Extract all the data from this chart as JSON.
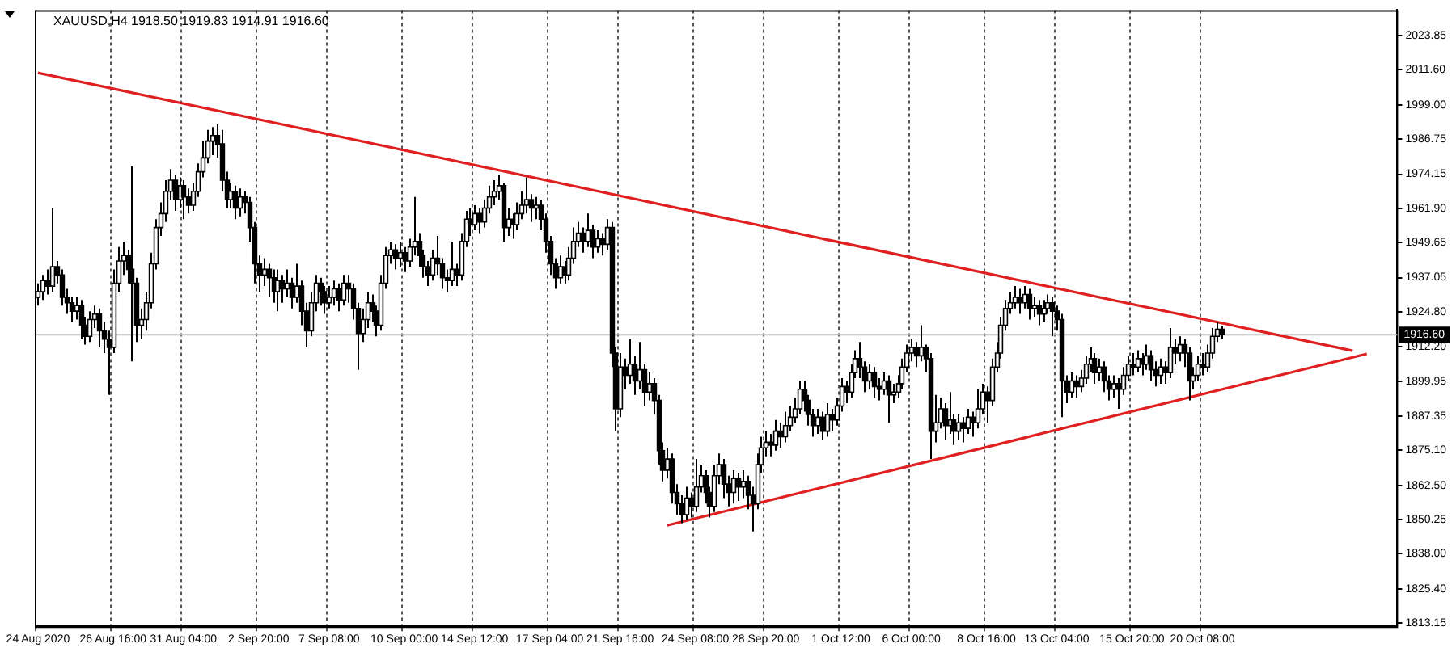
{
  "chart_data": {
    "type": "candlestick",
    "title": "XAUUSD,H4 1918.50 1919.83 1914.91 1916.60",
    "categories": [
      "24 Aug 2020",
      null,
      null,
      null,
      null,
      null,
      null,
      null,
      null,
      null,
      null,
      null,
      null,
      null,
      null,
      null,
      "26 Aug 16:00",
      null,
      null,
      null,
      null,
      null,
      null,
      null,
      null,
      null,
      null,
      null,
      null,
      null,
      null,
      "31 Aug 04:00",
      null,
      null,
      null,
      null,
      null,
      null,
      null,
      null,
      null,
      null,
      null,
      null,
      null,
      null,
      null,
      "2 Sep 20:00",
      null,
      null,
      null,
      null,
      null,
      null,
      null,
      null,
      null,
      null,
      null,
      null,
      null,
      null,
      "7 Sep 08:00",
      null,
      null,
      null,
      null,
      null,
      null,
      null,
      null,
      null,
      null,
      null,
      null,
      null,
      null,
      null,
      "10 Sep 00:00",
      null,
      null,
      null,
      null,
      null,
      null,
      null,
      null,
      null,
      null,
      null,
      null,
      null,
      null,
      "14 Sep 12:00",
      null,
      null,
      null,
      null,
      null,
      null,
      null,
      null,
      null,
      null,
      null,
      null,
      null,
      null,
      null,
      "17 Sep 04:00",
      null,
      null,
      null,
      null,
      null,
      null,
      null,
      null,
      null,
      null,
      null,
      null,
      null,
      null,
      "21 Sep 16:00",
      null,
      null,
      null,
      null,
      null,
      null,
      null,
      null,
      null,
      null,
      null,
      null,
      null,
      null,
      null,
      "24 Sep 08:00",
      null,
      null,
      null,
      null,
      null,
      null,
      null,
      null,
      null,
      null,
      null,
      null,
      null,
      null,
      "28 Sep 20:00",
      null,
      null,
      null,
      null,
      null,
      null,
      null,
      null,
      null,
      null,
      null,
      null,
      null,
      null,
      null,
      "1 Oct 12:00",
      null,
      null,
      null,
      null,
      null,
      null,
      null,
      null,
      null,
      null,
      null,
      null,
      null,
      null,
      "6 Oct 00:00",
      null,
      null,
      null,
      null,
      null,
      null,
      null,
      null,
      null,
      null,
      null,
      null,
      null,
      null,
      null,
      "8 Oct 16:00",
      null,
      null,
      null,
      null,
      null,
      null,
      null,
      null,
      null,
      null,
      null,
      null,
      null,
      null,
      "13 Oct 04:00",
      null,
      null,
      null,
      null,
      null,
      null,
      null,
      null,
      null,
      null,
      null,
      null,
      null,
      null,
      null,
      "15 Oct 20:00",
      null,
      null,
      null,
      null,
      null,
      null,
      null,
      null,
      null,
      null,
      null,
      null,
      null,
      null,
      "20 Oct 08:00",
      null,
      null,
      null,
      null,
      null,
      null,
      null,
      null,
      null,
      null,
      null,
      null,
      null,
      null,
      null,
      null,
      null,
      null,
      null,
      null,
      null,
      null,
      null,
      null,
      null,
      null,
      null,
      null,
      null,
      null,
      null,
      null,
      null,
      null,
      null,
      null,
      null,
      null,
      null,
      null,
      null
    ],
    "ohlc": [
      [
        1930,
        1935,
        1927,
        1932
      ],
      [
        1932,
        1938,
        1929,
        1936
      ],
      [
        1936,
        1940,
        1931,
        1934
      ],
      [
        1934,
        1962,
        1932,
        1941
      ],
      [
        1941,
        1943,
        1935,
        1938
      ],
      [
        1938,
        1940,
        1927,
        1930
      ],
      [
        1930,
        1933,
        1924,
        1928
      ],
      [
        1928,
        1930,
        1921,
        1925
      ],
      [
        1925,
        1930,
        1922,
        1927
      ],
      [
        1927,
        1929,
        1915,
        1920
      ],
      [
        1920,
        1923,
        1913,
        1916
      ],
      [
        1916,
        1925,
        1914,
        1922
      ],
      [
        1922,
        1927,
        1919,
        1924
      ],
      [
        1924,
        1926,
        1912,
        1918
      ],
      [
        1918,
        1921,
        1910,
        1915
      ],
      [
        1915,
        1918,
        1895,
        1912
      ],
      [
        1912,
        1940,
        1910,
        1935
      ],
      [
        1935,
        1948,
        1932,
        1943
      ],
      [
        1943,
        1950,
        1938,
        1945
      ],
      [
        1945,
        1947,
        1935,
        1940
      ],
      [
        1940,
        1977,
        1907,
        1935
      ],
      [
        1935,
        1937,
        1914,
        1920
      ],
      [
        1920,
        1926,
        1915,
        1922
      ],
      [
        1922,
        1932,
        1918,
        1928
      ],
      [
        1928,
        1946,
        1926,
        1942
      ],
      [
        1942,
        1958,
        1940,
        1955
      ],
      [
        1955,
        1964,
        1952,
        1960
      ],
      [
        1960,
        1972,
        1957,
        1968
      ],
      [
        1968,
        1976,
        1965,
        1972
      ],
      [
        1972,
        1974,
        1961,
        1965
      ],
      [
        1965,
        1973,
        1962,
        1970
      ],
      [
        1970,
        1972,
        1958,
        1966
      ],
      [
        1966,
        1969,
        1960,
        1963
      ],
      [
        1963,
        1971,
        1961,
        1968
      ],
      [
        1968,
        1978,
        1966,
        1975
      ],
      [
        1975,
        1986,
        1973,
        1980
      ],
      [
        1980,
        1990,
        1978,
        1986
      ],
      [
        1986,
        1991,
        1981,
        1988
      ],
      [
        1988,
        1992,
        1980,
        1985
      ],
      [
        1985,
        1990,
        1968,
        1972
      ],
      [
        1972,
        1975,
        1962,
        1965
      ],
      [
        1965,
        1971,
        1962,
        1968
      ],
      [
        1968,
        1970,
        1958,
        1962
      ],
      [
        1962,
        1969,
        1959,
        1966
      ],
      [
        1966,
        1968,
        1960,
        1964
      ],
      [
        1964,
        1966,
        1950,
        1955
      ],
      [
        1955,
        1957,
        1935,
        1942
      ],
      [
        1942,
        1945,
        1932,
        1938
      ],
      [
        1938,
        1944,
        1934,
        1940
      ],
      [
        1940,
        1942,
        1930,
        1937
      ],
      [
        1937,
        1940,
        1928,
        1932
      ],
      [
        1932,
        1940,
        1925,
        1936
      ],
      [
        1936,
        1938,
        1928,
        1933
      ],
      [
        1933,
        1940,
        1930,
        1935
      ],
      [
        1935,
        1937,
        1926,
        1930
      ],
      [
        1930,
        1942,
        1928,
        1934
      ],
      [
        1934,
        1936,
        1920,
        1925
      ],
      [
        1925,
        1928,
        1912,
        1918
      ],
      [
        1918,
        1932,
        1916,
        1928
      ],
      [
        1928,
        1938,
        1925,
        1935
      ],
      [
        1935,
        1937,
        1927,
        1932
      ],
      [
        1932,
        1934,
        1924,
        1928
      ],
      [
        1928,
        1934,
        1926,
        1930
      ],
      [
        1930,
        1936,
        1927,
        1933
      ],
      [
        1933,
        1935,
        1925,
        1929
      ],
      [
        1929,
        1938,
        1927,
        1935
      ],
      [
        1935,
        1938,
        1928,
        1933
      ],
      [
        1933,
        1935,
        1922,
        1926
      ],
      [
        1926,
        1928,
        1904,
        1917
      ],
      [
        1917,
        1926,
        1914,
        1922
      ],
      [
        1922,
        1932,
        1919,
        1928
      ],
      [
        1928,
        1931,
        1921,
        1925
      ],
      [
        1925,
        1927,
        1916,
        1920
      ],
      [
        1920,
        1938,
        1918,
        1935
      ],
      [
        1935,
        1948,
        1933,
        1945
      ],
      [
        1945,
        1950,
        1942,
        1947
      ],
      [
        1947,
        1949,
        1940,
        1944
      ],
      [
        1944,
        1950,
        1941,
        1946
      ],
      [
        1946,
        1948,
        1939,
        1943
      ],
      [
        1943,
        1951,
        1941,
        1948
      ],
      [
        1948,
        1966,
        1945,
        1950
      ],
      [
        1950,
        1953,
        1941,
        1945
      ],
      [
        1945,
        1947,
        1937,
        1941
      ],
      [
        1941,
        1943,
        1934,
        1938
      ],
      [
        1938,
        1947,
        1936,
        1944
      ],
      [
        1944,
        1952,
        1938,
        1942
      ],
      [
        1942,
        1944,
        1933,
        1937
      ],
      [
        1937,
        1940,
        1932,
        1936
      ],
      [
        1936,
        1950,
        1934,
        1940
      ],
      [
        1940,
        1942,
        1934,
        1938
      ],
      [
        1938,
        1953,
        1936,
        1950
      ],
      [
        1950,
        1961,
        1948,
        1958
      ],
      [
        1958,
        1962,
        1952,
        1956
      ],
      [
        1956,
        1963,
        1954,
        1960
      ],
      [
        1960,
        1962,
        1953,
        1957
      ],
      [
        1957,
        1965,
        1955,
        1962
      ],
      [
        1962,
        1970,
        1960,
        1966
      ],
      [
        1966,
        1972,
        1963,
        1968
      ],
      [
        1968,
        1974,
        1965,
        1970
      ],
      [
        1970,
        1971,
        1950,
        1955
      ],
      [
        1955,
        1962,
        1952,
        1958
      ],
      [
        1958,
        1960,
        1951,
        1956
      ],
      [
        1956,
        1964,
        1954,
        1960
      ],
      [
        1960,
        1968,
        1958,
        1963
      ],
      [
        1963,
        1973,
        1960,
        1965
      ],
      [
        1965,
        1967,
        1957,
        1962
      ],
      [
        1962,
        1966,
        1958,
        1963
      ],
      [
        1963,
        1965,
        1954,
        1958
      ],
      [
        1958,
        1960,
        1946,
        1950
      ],
      [
        1950,
        1952,
        1938,
        1942
      ],
      [
        1942,
        1944,
        1933,
        1937
      ],
      [
        1937,
        1945,
        1935,
        1941
      ],
      [
        1941,
        1943,
        1935,
        1938
      ],
      [
        1938,
        1948,
        1936,
        1944
      ],
      [
        1944,
        1955,
        1942,
        1950
      ],
      [
        1950,
        1957,
        1948,
        1953
      ],
      [
        1953,
        1955,
        1946,
        1950
      ],
      [
        1950,
        1960,
        1948,
        1954
      ],
      [
        1954,
        1956,
        1944,
        1948
      ],
      [
        1948,
        1954,
        1946,
        1951
      ],
      [
        1951,
        1953,
        1945,
        1949
      ],
      [
        1949,
        1958,
        1947,
        1955
      ],
      [
        1955,
        1957,
        1905,
        1910
      ],
      [
        1910,
        1912,
        1882,
        1890
      ],
      [
        1890,
        1910,
        1887,
        1905
      ],
      [
        1905,
        1908,
        1897,
        1902
      ],
      [
        1902,
        1915,
        1899,
        1906
      ],
      [
        1906,
        1909,
        1895,
        1900
      ],
      [
        1900,
        1914,
        1897,
        1904
      ],
      [
        1904,
        1906,
        1891,
        1896
      ],
      [
        1896,
        1903,
        1893,
        1899
      ],
      [
        1899,
        1901,
        1888,
        1893
      ],
      [
        1893,
        1895,
        1870,
        1875
      ],
      [
        1875,
        1878,
        1864,
        1868
      ],
      [
        1868,
        1876,
        1865,
        1872
      ],
      [
        1872,
        1874,
        1856,
        1860
      ],
      [
        1860,
        1863,
        1852,
        1856
      ],
      [
        1856,
        1859,
        1849,
        1852
      ],
      [
        1852,
        1862,
        1850,
        1858
      ],
      [
        1858,
        1860,
        1851,
        1855
      ],
      [
        1855,
        1872,
        1853,
        1862
      ],
      [
        1862,
        1870,
        1860,
        1866
      ],
      [
        1866,
        1868,
        1856,
        1860
      ],
      [
        1860,
        1862,
        1851,
        1855
      ],
      [
        1855,
        1870,
        1853,
        1866
      ],
      [
        1866,
        1874,
        1863,
        1870
      ],
      [
        1870,
        1872,
        1858,
        1863
      ],
      [
        1863,
        1866,
        1855,
        1860
      ],
      [
        1860,
        1868,
        1856,
        1865
      ],
      [
        1865,
        1867,
        1857,
        1862
      ],
      [
        1862,
        1868,
        1858,
        1864
      ],
      [
        1864,
        1866,
        1854,
        1859
      ],
      [
        1859,
        1862,
        1846,
        1856
      ],
      [
        1856,
        1874,
        1854,
        1870
      ],
      [
        1870,
        1880,
        1867,
        1876
      ],
      [
        1876,
        1882,
        1873,
        1878
      ],
      [
        1878,
        1881,
        1873,
        1877
      ],
      [
        1877,
        1886,
        1875,
        1882
      ],
      [
        1882,
        1885,
        1876,
        1880
      ],
      [
        1880,
        1889,
        1878,
        1884
      ],
      [
        1884,
        1891,
        1882,
        1887
      ],
      [
        1887,
        1894,
        1885,
        1890
      ],
      [
        1890,
        1900,
        1888,
        1897
      ],
      [
        1897,
        1900,
        1889,
        1893
      ],
      [
        1893,
        1895,
        1884,
        1888
      ],
      [
        1888,
        1890,
        1880,
        1884
      ],
      [
        1884,
        1890,
        1881,
        1887
      ],
      [
        1887,
        1889,
        1879,
        1882
      ],
      [
        1882,
        1892,
        1880,
        1888
      ],
      [
        1888,
        1890,
        1882,
        1886
      ],
      [
        1886,
        1894,
        1884,
        1891
      ],
      [
        1891,
        1901,
        1889,
        1898
      ],
      [
        1898,
        1900,
        1892,
        1896
      ],
      [
        1896,
        1906,
        1894,
        1903
      ],
      [
        1903,
        1911,
        1901,
        1908
      ],
      [
        1908,
        1914,
        1901,
        1905
      ],
      [
        1905,
        1907,
        1896,
        1900
      ],
      [
        1900,
        1906,
        1897,
        1903
      ],
      [
        1903,
        1905,
        1894,
        1898
      ],
      [
        1898,
        1901,
        1893,
        1897
      ],
      [
        1897,
        1903,
        1895,
        1900
      ],
      [
        1900,
        1902,
        1885,
        1895
      ],
      [
        1895,
        1899,
        1892,
        1896
      ],
      [
        1896,
        1902,
        1894,
        1899
      ],
      [
        1899,
        1908,
        1897,
        1905
      ],
      [
        1905,
        1913,
        1903,
        1910
      ],
      [
        1910,
        1915,
        1907,
        1912
      ],
      [
        1912,
        1914,
        1905,
        1909
      ],
      [
        1909,
        1920,
        1907,
        1912
      ],
      [
        1912,
        1913,
        1903,
        1908
      ],
      [
        1908,
        1910,
        1872,
        1882
      ],
      [
        1882,
        1895,
        1878,
        1885
      ],
      [
        1885,
        1894,
        1883,
        1890
      ],
      [
        1890,
        1892,
        1879,
        1884
      ],
      [
        1884,
        1896,
        1881,
        1886
      ],
      [
        1886,
        1888,
        1877,
        1882
      ],
      [
        1882,
        1888,
        1879,
        1885
      ],
      [
        1885,
        1887,
        1878,
        1883
      ],
      [
        1883,
        1890,
        1881,
        1887
      ],
      [
        1887,
        1889,
        1880,
        1885
      ],
      [
        1885,
        1897,
        1883,
        1890
      ],
      [
        1890,
        1899,
        1888,
        1896
      ],
      [
        1896,
        1898,
        1885,
        1893
      ],
      [
        1893,
        1908,
        1891,
        1905
      ],
      [
        1905,
        1914,
        1903,
        1910
      ],
      [
        1910,
        1923,
        1908,
        1920
      ],
      [
        1920,
        1929,
        1918,
        1926
      ],
      [
        1926,
        1932,
        1924,
        1928
      ],
      [
        1928,
        1934,
        1926,
        1930
      ],
      [
        1930,
        1933,
        1924,
        1928
      ],
      [
        1928,
        1934,
        1926,
        1931
      ],
      [
        1931,
        1933,
        1922,
        1926
      ],
      [
        1926,
        1930,
        1923,
        1927
      ],
      [
        1927,
        1929,
        1920,
        1924
      ],
      [
        1924,
        1929,
        1921,
        1926
      ],
      [
        1926,
        1931,
        1924,
        1928
      ],
      [
        1928,
        1930,
        1916,
        1925
      ],
      [
        1925,
        1927,
        1918,
        1922
      ],
      [
        1922,
        1924,
        1887,
        1900
      ],
      [
        1900,
        1902,
        1892,
        1896
      ],
      [
        1896,
        1903,
        1894,
        1900
      ],
      [
        1900,
        1902,
        1894,
        1898
      ],
      [
        1898,
        1904,
        1896,
        1901
      ],
      [
        1901,
        1909,
        1899,
        1906
      ],
      [
        1906,
        1912,
        1903,
        1908
      ],
      [
        1908,
        1910,
        1899,
        1903
      ],
      [
        1903,
        1908,
        1900,
        1905
      ],
      [
        1905,
        1907,
        1896,
        1900
      ],
      [
        1900,
        1902,
        1893,
        1897
      ],
      [
        1897,
        1902,
        1894,
        1899
      ],
      [
        1899,
        1901,
        1890,
        1897
      ],
      [
        1897,
        1905,
        1895,
        1902
      ],
      [
        1902,
        1909,
        1900,
        1906
      ],
      [
        1906,
        1910,
        1902,
        1905
      ],
      [
        1905,
        1911,
        1903,
        1908
      ],
      [
        1908,
        1910,
        1902,
        1906
      ],
      [
        1906,
        1913,
        1904,
        1909
      ],
      [
        1909,
        1911,
        1900,
        1904
      ],
      [
        1904,
        1907,
        1898,
        1902
      ],
      [
        1902,
        1908,
        1899,
        1905
      ],
      [
        1905,
        1907,
        1899,
        1903
      ],
      [
        1903,
        1919,
        1901,
        1912
      ],
      [
        1912,
        1915,
        1906,
        1910
      ],
      [
        1910,
        1916,
        1907,
        1913
      ],
      [
        1913,
        1915,
        1905,
        1910
      ],
      [
        1910,
        1912,
        1893,
        1900
      ],
      [
        1900,
        1905,
        1897,
        1902
      ],
      [
        1902,
        1909,
        1900,
        1906
      ],
      [
        1906,
        1910,
        1902,
        1905
      ],
      [
        1905,
        1913,
        1903,
        1910
      ],
      [
        1910,
        1919,
        1908,
        1916
      ],
      [
        1916,
        1921,
        1914,
        1918.5
      ],
      [
        1918.5,
        1919.83,
        1914.91,
        1916.6
      ],
      null,
      null,
      null,
      null,
      null,
      null,
      null,
      null,
      null,
      null,
      null,
      null,
      null,
      null,
      null,
      null,
      null,
      null,
      null,
      null,
      null,
      null,
      null,
      null,
      null,
      null,
      null,
      null,
      null,
      null,
      null,
      null,
      null,
      null,
      null,
      null,
      null
    ],
    "series": [
      {
        "type": "line",
        "color": "#e02020",
        "values": [
          2010.5,
          null,
          null,
          null,
          null,
          null,
          null,
          null,
          null,
          null,
          null,
          null,
          null,
          null,
          null,
          null,
          null,
          null,
          null,
          null,
          null,
          null,
          null,
          null,
          null,
          null,
          null,
          null,
          null,
          null,
          null,
          null,
          null,
          null,
          null,
          null,
          null,
          null,
          null,
          null,
          null,
          null,
          null,
          null,
          null,
          null,
          null,
          null,
          null,
          null,
          null,
          null,
          null,
          null,
          null,
          null,
          null,
          null,
          null,
          null,
          null,
          null,
          null,
          null,
          null,
          null,
          null,
          null,
          null,
          null,
          null,
          null,
          null,
          null,
          null,
          null,
          null,
          null,
          null,
          null,
          null,
          null,
          null,
          null,
          null,
          null,
          null,
          null,
          null,
          null,
          null,
          null,
          null,
          null,
          null,
          null,
          null,
          null,
          null,
          null,
          null,
          null,
          null,
          null,
          null,
          null,
          null,
          null,
          null,
          null,
          null,
          null,
          null,
          null,
          null,
          null,
          null,
          null,
          null,
          null,
          null,
          null,
          null,
          null,
          null,
          null,
          null,
          null,
          null,
          null,
          null,
          null,
          null,
          null,
          null,
          null,
          null,
          null,
          null,
          null,
          null,
          null,
          null,
          null,
          null,
          null,
          null,
          null,
          null,
          null,
          null,
          null,
          null,
          null,
          null,
          null,
          null,
          null,
          null,
          null,
          null,
          null,
          null,
          null,
          null,
          null,
          null,
          null,
          null,
          null,
          null,
          null,
          null,
          null,
          null,
          null,
          null,
          null,
          null,
          null,
          null,
          null,
          null,
          null,
          null,
          null,
          null,
          null,
          null,
          null,
          null,
          null,
          null,
          null,
          null,
          null,
          null,
          null,
          null,
          null,
          null,
          null,
          null,
          null,
          null,
          null,
          null,
          null,
          null,
          null,
          null,
          null,
          null,
          null,
          null,
          null,
          null,
          null,
          null,
          null,
          null,
          null,
          null,
          null,
          null,
          null,
          null,
          null,
          null,
          null,
          null,
          null,
          null,
          null,
          null,
          null,
          null,
          null,
          null,
          null,
          null,
          null,
          null,
          null,
          null,
          null,
          null,
          null,
          null,
          null,
          null,
          null,
          null,
          null,
          null,
          null,
          null,
          null,
          null,
          null,
          null,
          null,
          null,
          null,
          null,
          null,
          null,
          null,
          null,
          null,
          null,
          null,
          null,
          null,
          null,
          null,
          null,
          null,
          null,
          null,
          1910.8,
          null,
          null,
          null,
          null,
          null,
          null,
          null,
          null,
          null
        ]
      },
      {
        "type": "line",
        "color": "#e02020",
        "values": [
          null,
          null,
          null,
          null,
          null,
          null,
          null,
          null,
          null,
          null,
          null,
          null,
          null,
          null,
          null,
          null,
          null,
          null,
          null,
          null,
          null,
          null,
          null,
          null,
          null,
          null,
          null,
          null,
          null,
          null,
          null,
          null,
          null,
          null,
          null,
          null,
          null,
          null,
          null,
          null,
          null,
          null,
          null,
          null,
          null,
          null,
          null,
          null,
          null,
          null,
          null,
          null,
          null,
          null,
          null,
          null,
          null,
          null,
          null,
          null,
          null,
          null,
          null,
          null,
          null,
          null,
          null,
          null,
          null,
          null,
          null,
          null,
          null,
          null,
          null,
          null,
          null,
          null,
          null,
          null,
          null,
          null,
          null,
          null,
          null,
          null,
          null,
          null,
          null,
          null,
          null,
          null,
          null,
          null,
          null,
          null,
          null,
          null,
          null,
          null,
          null,
          null,
          null,
          null,
          null,
          null,
          null,
          null,
          null,
          null,
          null,
          null,
          null,
          null,
          null,
          null,
          null,
          null,
          null,
          null,
          null,
          null,
          null,
          null,
          null,
          null,
          null,
          null,
          null,
          null,
          null,
          null,
          null,
          null,
          1848.2,
          null,
          null,
          null,
          null,
          null,
          null,
          null,
          null,
          null,
          null,
          null,
          null,
          null,
          null,
          null,
          null,
          null,
          null,
          null,
          null,
          null,
          null,
          null,
          null,
          null,
          null,
          null,
          null,
          null,
          null,
          null,
          null,
          null,
          null,
          null,
          null,
          null,
          null,
          null,
          null,
          null,
          null,
          null,
          null,
          null,
          null,
          null,
          null,
          null,
          null,
          null,
          null,
          null,
          null,
          null,
          null,
          null,
          null,
          null,
          null,
          null,
          null,
          null,
          null,
          null,
          null,
          null,
          null,
          null,
          null,
          null,
          null,
          null,
          null,
          null,
          null,
          null,
          null,
          null,
          null,
          null,
          null,
          null,
          null,
          null,
          null,
          null,
          null,
          null,
          null,
          null,
          null,
          null,
          null,
          null,
          null,
          null,
          null,
          null,
          null,
          null,
          null,
          null,
          null,
          null,
          null,
          null,
          null,
          null,
          null,
          null,
          null,
          null,
          null,
          null,
          null,
          null,
          null,
          null,
          null,
          null,
          null,
          null,
          null,
          null,
          null,
          null,
          null,
          null,
          null,
          null,
          null,
          null,
          null,
          null,
          null,
          null,
          null,
          null,
          null,
          null,
          null,
          null,
          null,
          null,
          null,
          null,
          null,
          1909.7,
          null,
          null,
          null,
          null,
          null,
          null
        ]
      }
    ],
    "ylim": [
      1812,
      2033
    ],
    "yticks": [
      {
        "value": 1813.15,
        "label": "1813.15"
      },
      {
        "value": 1825.4,
        "label": "1825.40"
      },
      {
        "value": 1838,
        "label": "1838.00"
      },
      {
        "value": 1850.25,
        "label": "1850.25"
      },
      {
        "value": 1862.5,
        "label": "1862.50"
      },
      {
        "value": 1875.1,
        "label": "1875.10"
      },
      {
        "value": 1887.35,
        "label": "1887.35"
      },
      {
        "value": 1899.95,
        "label": "1899.95"
      },
      {
        "value": 1912.2,
        "label": "1912.20"
      },
      {
        "value": 1924.8,
        "label": "1924.80"
      },
      {
        "value": 1937.05,
        "label": "1937.05"
      },
      {
        "value": 1949.65,
        "label": "1949.65"
      },
      {
        "value": 1961.9,
        "label": "1961.90"
      },
      {
        "value": 1974.15,
        "label": "1974.15"
      },
      {
        "value": 1986.75,
        "label": "1986.75"
      },
      {
        "value": 1999,
        "label": "1999.00"
      },
      {
        "value": 2011.6,
        "label": "2011.60"
      },
      {
        "value": 2023.85,
        "label": "2023.85"
      }
    ],
    "ref_lines": [
      {
        "axis": "y",
        "value": 1916.6,
        "label": "1916.60",
        "color": "#c0c0c0"
      }
    ],
    "grid": "x"
  }
}
